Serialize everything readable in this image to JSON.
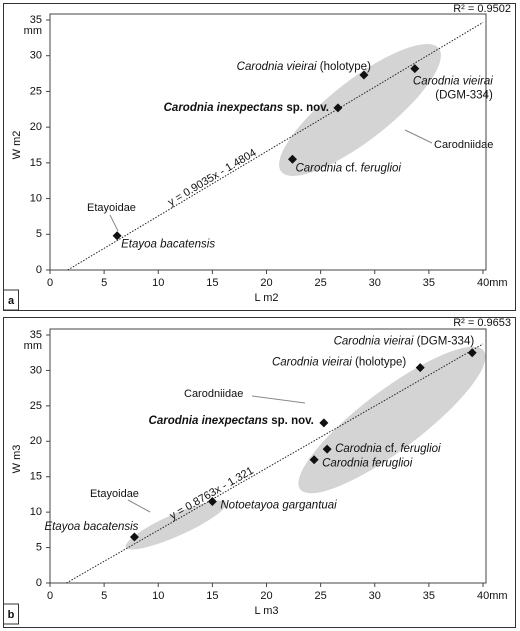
{
  "chart_data": [
    {
      "type": "scatter",
      "panel": "a",
      "x_label": "L m2",
      "y_label": "W m2",
      "y_unit": "mm",
      "xlim": [
        0,
        40
      ],
      "ylim": [
        0,
        35
      ],
      "xticks": [
        0,
        5,
        10,
        15,
        20,
        25,
        30,
        35,
        {
          "value": 40,
          "label": "40mm"
        }
      ],
      "yticks": [
        0,
        5,
        10,
        15,
        20,
        25,
        30,
        35
      ],
      "r_squared": "R² = 0.9502",
      "trendline": {
        "slope": 0.9035,
        "intercept": -1.4804,
        "label": "y = 0.9035x - 1.4804"
      },
      "groups": [
        {
          "name": "Carodniidae"
        },
        {
          "name": "Etayoidae"
        }
      ],
      "points": [
        {
          "x": 6.2,
          "y": 4.8,
          "label": [
            {
              "text": "Etayoa bacatensis",
              "style": "italic"
            }
          ]
        },
        {
          "x": 22.4,
          "y": 15.5,
          "label": [
            {
              "text": "Carodnia",
              "style": "italic"
            },
            {
              "text": " cf. ",
              "style": "normal"
            },
            {
              "text": "feruglioi",
              "style": "italic"
            }
          ]
        },
        {
          "x": 26.6,
          "y": 22.7,
          "label": [
            {
              "text": "Carodnia inexpectans",
              "style": "bold-italic"
            },
            {
              "text": " sp. nov.",
              "style": "bold"
            }
          ]
        },
        {
          "x": 29,
          "y": 27.3,
          "label": [
            {
              "text": "Carodnia vieirai",
              "style": "italic"
            },
            {
              "text": " (holotype)",
              "style": "normal"
            }
          ]
        },
        {
          "x": 33.7,
          "y": 28.2,
          "label": [
            {
              "text": "Carodnia vieirai",
              "style": "italic"
            },
            {
              "text": "(DGM-334)",
              "style": "normal",
              "newline": true
            }
          ]
        }
      ]
    },
    {
      "type": "scatter",
      "panel": "b",
      "x_label": "L m3",
      "y_label": "W m3",
      "y_unit": "mm",
      "xlim": [
        0,
        40
      ],
      "ylim": [
        0,
        35
      ],
      "xticks": [
        0,
        5,
        10,
        15,
        20,
        25,
        30,
        35,
        {
          "value": 40,
          "label": "40mm"
        }
      ],
      "yticks": [
        0,
        5,
        10,
        15,
        20,
        25,
        30,
        35
      ],
      "r_squared": "R² = 0.9653",
      "trendline": {
        "slope": 0.8763,
        "intercept": -1.321,
        "label": "y = 0.8763x - 1.321"
      },
      "groups": [
        {
          "name": "Carodniidae"
        },
        {
          "name": "Etayoidae"
        }
      ],
      "points": [
        {
          "x": 7.8,
          "y": 6.5,
          "label": [
            {
              "text": "Etayoa bacatensis",
              "style": "italic"
            }
          ]
        },
        {
          "x": 15,
          "y": 11.5,
          "label": [
            {
              "text": "Notoetayoa gargantuai",
              "style": "italic"
            }
          ]
        },
        {
          "x": 24.4,
          "y": 17.4,
          "label": [
            {
              "text": "Carodnia feruglioi",
              "style": "italic"
            }
          ]
        },
        {
          "x": 25.6,
          "y": 18.9,
          "label": [
            {
              "text": "Carodnia",
              "style": "italic"
            },
            {
              "text": " cf. ",
              "style": "normal"
            },
            {
              "text": "feruglioi",
              "style": "italic"
            }
          ]
        },
        {
          "x": 25.3,
          "y": 22.6,
          "label": [
            {
              "text": "Carodnia inexpectans",
              "style": "bold-italic"
            },
            {
              "text": " sp. nov.",
              "style": "bold"
            }
          ]
        },
        {
          "x": 34.2,
          "y": 30.4,
          "label": [
            {
              "text": "Carodnia vieirai",
              "style": "italic"
            },
            {
              "text": " (holotype)",
              "style": "normal"
            }
          ]
        },
        {
          "x": 39,
          "y": 32.5,
          "label": [
            {
              "text": "Carodnia vieirai",
              "style": "italic"
            },
            {
              "text": " (DGM-334)",
              "style": "normal"
            }
          ]
        }
      ]
    }
  ]
}
